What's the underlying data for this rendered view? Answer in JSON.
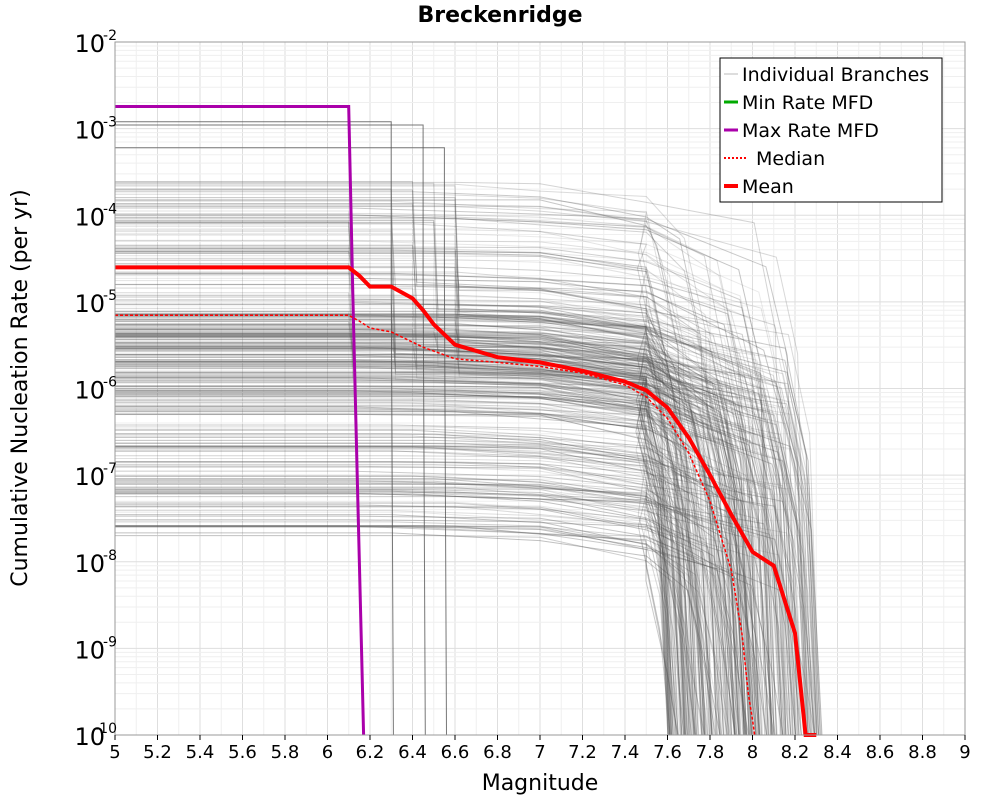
{
  "chart_data": {
    "type": "line",
    "title": "Breckenridge",
    "xlabel": "Magnitude",
    "ylabel": "Cumulative Nucleation Rate (per yr)",
    "xlim": [
      5,
      9
    ],
    "ylim": [
      1e-10,
      0.01
    ],
    "yscale": "log",
    "grid": true,
    "legend_position": "top-right",
    "x_ticks": [
      "5",
      "5.2",
      "5.4",
      "5.6",
      "5.8",
      "6",
      "6.2",
      "6.4",
      "6.6",
      "6.8",
      "7",
      "7.2",
      "7.4",
      "7.6",
      "7.8",
      "8",
      "8.2",
      "8.4",
      "8.6",
      "8.8",
      "9"
    ],
    "y_ticks": [
      {
        "base": "10",
        "exp": "-10",
        "value": 1e-10
      },
      {
        "base": "10",
        "exp": "-9",
        "value": 1e-09
      },
      {
        "base": "10",
        "exp": "-8",
        "value": 1e-08
      },
      {
        "base": "10",
        "exp": "-7",
        "value": 1e-07
      },
      {
        "base": "10",
        "exp": "-6",
        "value": 1e-06
      },
      {
        "base": "10",
        "exp": "-5",
        "value": 1e-05
      },
      {
        "base": "10",
        "exp": "-4",
        "value": 0.0001
      },
      {
        "base": "10",
        "exp": "-3",
        "value": 0.001
      },
      {
        "base": "10",
        "exp": "-2",
        "value": 0.01
      }
    ],
    "series": [
      {
        "name": "Max Rate MFD",
        "color": "#aa00aa",
        "style": "solid",
        "x": [
          5.0,
          6.1,
          6.12,
          6.14,
          6.16,
          6.17
        ],
        "y": [
          0.0018,
          0.0018,
          1e-05,
          1e-07,
          1e-09,
          1e-10
        ]
      },
      {
        "name": "Min Rate MFD",
        "color": "#00aa00",
        "style": "solid",
        "x": [],
        "y": []
      },
      {
        "name": "Median",
        "color": "#ff0000",
        "style": "dotted",
        "x": [
          5.0,
          6.1,
          6.15,
          6.2,
          6.3,
          6.45,
          6.6,
          6.8,
          7.0,
          7.2,
          7.4,
          7.5,
          7.6,
          7.7,
          7.8,
          7.9,
          7.95,
          7.98,
          8.0,
          8.01
        ],
        "y": [
          7e-06,
          7e-06,
          6e-06,
          5e-06,
          4.5e-06,
          3e-06,
          2.2e-06,
          2e-06,
          1.8e-06,
          1.5e-06,
          1.1e-06,
          8e-07,
          4.5e-07,
          1.8e-07,
          5e-08,
          8e-09,
          1.5e-09,
          3e-10,
          1.5e-10,
          1e-10
        ]
      },
      {
        "name": "Mean",
        "color": "#ff0000",
        "style": "solid",
        "x": [
          5.0,
          6.1,
          6.15,
          6.2,
          6.3,
          6.4,
          6.45,
          6.5,
          6.6,
          6.8,
          7.0,
          7.2,
          7.4,
          7.5,
          7.6,
          7.7,
          7.8,
          7.9,
          8.0,
          8.1,
          8.2,
          8.25,
          8.3
        ],
        "y": [
          2.5e-05,
          2.5e-05,
          2e-05,
          1.5e-05,
          1.5e-05,
          1.1e-05,
          8e-06,
          5.5e-06,
          3.2e-06,
          2.3e-06,
          2e-06,
          1.6e-06,
          1.2e-06,
          9.5e-07,
          6e-07,
          2.7e-07,
          1e-07,
          3.5e-08,
          1.3e-08,
          9e-09,
          1.5e-09,
          1e-10,
          1e-10
        ]
      }
    ],
    "individual_branches": {
      "name": "Individual Branches",
      "color": "#555555",
      "count": 340,
      "description_levels": {
        "flat_high_group": [
          0.0012,
          0.0011,
          0.0006
        ],
        "step_magnitudes": [
          6.1,
          6.3,
          6.4,
          6.5,
          6.6
        ],
        "tail_cutoff_range": [
          7.6,
          8.33
        ],
        "flat_rate_range": [
          2e-08,
          0.0003
        ]
      }
    },
    "legend": [
      {
        "label": "Individual Branches",
        "color": "#bbbbbb",
        "style": "thin"
      },
      {
        "label": "Min Rate MFD",
        "color": "#00aa00",
        "style": "solid"
      },
      {
        "label": "Max Rate MFD",
        "color": "#aa00aa",
        "style": "solid"
      },
      {
        "label": "Median",
        "color": "#ff0000",
        "style": "dotted"
      },
      {
        "label": "Mean",
        "color": "#ff0000",
        "style": "thick"
      }
    ]
  }
}
